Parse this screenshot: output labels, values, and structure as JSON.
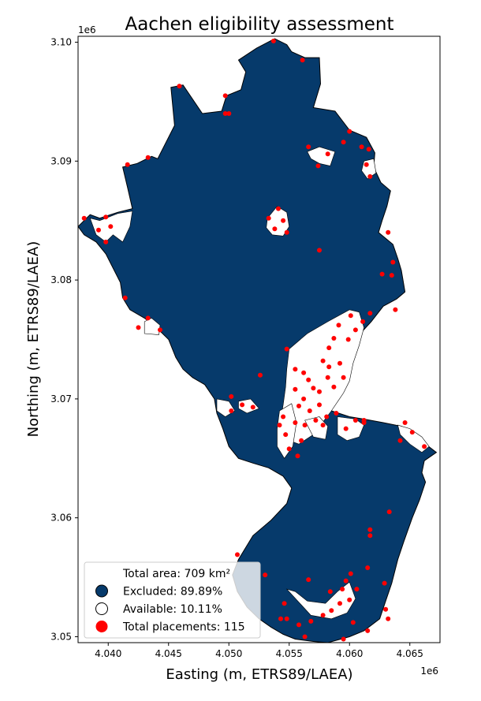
{
  "chart_data": {
    "type": "scatter",
    "title": "Aachen eligibility assessment",
    "xlabel": "Easting (m, ETRS89/LAEA)",
    "ylabel": "Northing (m, ETRS89/LAEA)",
    "x_offset_label": "1e6",
    "y_offset_label": "1e6",
    "xlim": [
      4.0375,
      4.0675
    ],
    "ylim": [
      3.0495,
      3.1005
    ],
    "x_ticks": [
      {
        "value": 4.04,
        "label": "4.040"
      },
      {
        "value": 4.045,
        "label": "4.045"
      },
      {
        "value": 4.05,
        "label": "4.050"
      },
      {
        "value": 4.055,
        "label": "4.055"
      },
      {
        "value": 4.06,
        "label": "4.060"
      },
      {
        "value": 4.065,
        "label": "4.065"
      }
    ],
    "y_ticks": [
      {
        "value": 3.05,
        "label": "3.05"
      },
      {
        "value": 3.06,
        "label": "3.06"
      },
      {
        "value": 3.07,
        "label": "3.07"
      },
      {
        "value": 3.08,
        "label": "3.08"
      },
      {
        "value": 3.09,
        "label": "3.09"
      },
      {
        "value": 3.1,
        "label": "3.10"
      }
    ],
    "colors": {
      "excluded": "#063a6b",
      "available": "#ffffff",
      "placement": "#ff0000",
      "boundary": "#000000"
    },
    "region_boundary": [
      [
        4.0375,
        3.0845
      ],
      [
        4.0385,
        3.0855
      ],
      [
        4.0393,
        3.0852
      ],
      [
        4.0408,
        3.0857
      ],
      [
        4.042,
        3.086
      ],
      [
        4.0416,
        3.0878
      ],
      [
        4.0412,
        3.0895
      ],
      [
        4.0424,
        3.0898
      ],
      [
        4.0436,
        3.0904
      ],
      [
        4.0441,
        3.0902
      ],
      [
        4.0455,
        3.093
      ],
      [
        4.0452,
        3.0962
      ],
      [
        4.0462,
        3.0964
      ],
      [
        4.0478,
        3.094
      ],
      [
        4.0494,
        3.0942
      ],
      [
        4.0498,
        3.0955
      ],
      [
        4.051,
        3.096
      ],
      [
        4.0514,
        3.0975
      ],
      [
        4.0508,
        3.0985
      ],
      [
        4.0523,
        3.0995
      ],
      [
        4.0538,
        3.1003
      ],
      [
        4.0548,
        3.0998
      ],
      [
        4.0552,
        3.0992
      ],
      [
        4.0563,
        3.0987
      ],
      [
        4.0575,
        3.0987
      ],
      [
        4.0576,
        3.0965
      ],
      [
        4.057,
        3.0945
      ],
      [
        4.0588,
        3.0942
      ],
      [
        4.06,
        3.0926
      ],
      [
        4.0614,
        3.092
      ],
      [
        4.0621,
        3.0907
      ],
      [
        4.062,
        3.0895
      ],
      [
        4.0626,
        3.0882
      ],
      [
        4.0634,
        3.0875
      ],
      [
        4.0631,
        3.0862
      ],
      [
        4.0627,
        3.085
      ],
      [
        4.0624,
        3.084
      ],
      [
        4.0636,
        3.083
      ],
      [
        4.064,
        3.0818
      ],
      [
        4.0643,
        3.0808
      ],
      [
        4.0646,
        3.079
      ],
      [
        4.0639,
        3.0784
      ],
      [
        4.0628,
        3.0778
      ],
      [
        4.0618,
        3.0765
      ],
      [
        4.0608,
        3.0754
      ],
      [
        4.06,
        3.0738
      ],
      [
        4.0594,
        3.0722
      ],
      [
        4.059,
        3.0706
      ],
      [
        4.0583,
        3.0698
      ],
      [
        4.0585,
        3.069
      ],
      [
        4.06,
        3.0685
      ],
      [
        4.0612,
        3.0683
      ],
      [
        4.0628,
        3.068
      ],
      [
        4.0643,
        3.0677
      ],
      [
        4.0652,
        3.0672
      ],
      [
        4.0663,
        3.0662
      ],
      [
        4.0672,
        3.0655
      ],
      [
        4.0662,
        3.0648
      ],
      [
        4.066,
        3.0638
      ],
      [
        4.0663,
        3.063
      ],
      [
        4.0658,
        3.0615
      ],
      [
        4.0652,
        3.06
      ],
      [
        4.0645,
        3.058
      ],
      [
        4.064,
        3.0565
      ],
      [
        4.0635,
        3.0545
      ],
      [
        4.063,
        3.053
      ],
      [
        4.0625,
        3.0515
      ],
      [
        4.0612,
        3.0505
      ],
      [
        4.06,
        3.05
      ],
      [
        4.0582,
        3.0495
      ],
      [
        4.057,
        3.0496
      ],
      [
        4.0555,
        3.0498
      ],
      [
        4.0545,
        3.0502
      ],
      [
        4.0535,
        3.0508
      ],
      [
        4.0525,
        3.0515
      ],
      [
        4.0515,
        3.0525
      ],
      [
        4.0507,
        3.0538
      ],
      [
        4.0503,
        3.0552
      ],
      [
        4.0508,
        3.0565
      ],
      [
        4.052,
        3.0585
      ],
      [
        4.0535,
        3.0598
      ],
      [
        4.0548,
        3.0612
      ],
      [
        4.0552,
        3.0625
      ],
      [
        4.0545,
        3.0635
      ],
      [
        4.0533,
        3.0642
      ],
      [
        4.052,
        3.0646
      ],
      [
        4.0508,
        3.065
      ],
      [
        4.05,
        3.066
      ],
      [
        4.0495,
        3.0675
      ],
      [
        4.049,
        3.0688
      ],
      [
        4.0488,
        3.07
      ],
      [
        4.048,
        3.0712
      ],
      [
        4.047,
        3.0718
      ],
      [
        4.0462,
        3.0725
      ],
      [
        4.0456,
        3.0735
      ],
      [
        4.045,
        3.075
      ],
      [
        4.044,
        3.076
      ],
      [
        4.043,
        3.0768
      ],
      [
        4.0418,
        3.0775
      ],
      [
        4.0412,
        3.0785
      ],
      [
        4.041,
        3.0798
      ],
      [
        4.0404,
        3.081
      ],
      [
        4.0398,
        3.0822
      ],
      [
        4.039,
        3.0832
      ],
      [
        4.038,
        3.0838
      ],
      [
        4.0375,
        3.0845
      ]
    ],
    "available_patches": [
      [
        [
          4.055,
          3.0742
        ],
        [
          4.0565,
          3.0755
        ],
        [
          4.0582,
          3.0765
        ],
        [
          4.06,
          3.0775
        ],
        [
          4.0608,
          3.0773
        ],
        [
          4.0612,
          3.076
        ],
        [
          4.0608,
          3.0745
        ],
        [
          4.0603,
          3.073
        ],
        [
          4.06,
          3.0715
        ],
        [
          4.0595,
          3.0705
        ],
        [
          4.0585,
          3.069
        ],
        [
          4.057,
          3.067
        ],
        [
          4.0558,
          3.0662
        ],
        [
          4.055,
          3.0665
        ],
        [
          4.0545,
          3.0672
        ],
        [
          4.0543,
          3.0682
        ],
        [
          4.0545,
          3.0695
        ],
        [
          4.0547,
          3.071
        ],
        [
          4.0548,
          3.0725
        ]
      ],
      [
        [
          4.0532,
          3.0852
        ],
        [
          4.054,
          3.0862
        ],
        [
          4.0548,
          3.0857
        ],
        [
          4.055,
          3.0845
        ],
        [
          4.0545,
          3.0837
        ],
        [
          4.0536,
          3.0838
        ],
        [
          4.0531,
          3.0844
        ]
      ],
      [
        [
          4.059,
          3.0685
        ],
        [
          4.0605,
          3.0683
        ],
        [
          4.0612,
          3.0678
        ],
        [
          4.0608,
          3.0668
        ],
        [
          4.0598,
          3.0665
        ],
        [
          4.059,
          3.067
        ]
      ],
      [
        [
          4.0385,
          3.0852
        ],
        [
          4.0393,
          3.085
        ],
        [
          4.0408,
          3.0856
        ],
        [
          4.042,
          3.0858
        ],
        [
          4.0418,
          3.0845
        ],
        [
          4.0412,
          3.0832
        ],
        [
          4.0404,
          3.0838
        ],
        [
          4.0398,
          3.0832
        ],
        [
          4.039,
          3.0838
        ]
      ],
      [
        [
          4.0436,
          3.0768
        ],
        [
          4.0443,
          3.0762
        ],
        [
          4.0442,
          3.0754
        ],
        [
          4.043,
          3.0755
        ],
        [
          4.043,
          3.0765
        ]
      ],
      [
        [
          4.0565,
          3.0908
        ],
        [
          4.0575,
          3.0912
        ],
        [
          4.0588,
          3.0908
        ],
        [
          4.0584,
          3.0896
        ],
        [
          4.0575,
          3.0898
        ],
        [
          4.0568,
          3.0902
        ]
      ],
      [
        [
          4.0612,
          3.09
        ],
        [
          4.062,
          3.0902
        ],
        [
          4.0622,
          3.089
        ],
        [
          4.0615,
          3.0885
        ],
        [
          4.061,
          3.0892
        ]
      ],
      [
        [
          4.0548,
          3.054
        ],
        [
          4.0568,
          3.0518
        ],
        [
          4.0585,
          3.0515
        ],
        [
          4.0598,
          3.052
        ],
        [
          4.0605,
          3.0532
        ],
        [
          4.06,
          3.0546
        ],
        [
          4.059,
          3.0538
        ],
        [
          4.058,
          3.0528
        ],
        [
          4.0565,
          3.053
        ],
        [
          4.0555,
          3.0538
        ]
      ],
      [
        [
          4.064,
          3.0678
        ],
        [
          4.065,
          3.0675
        ],
        [
          4.066,
          3.0668
        ],
        [
          4.0666,
          3.066
        ],
        [
          4.066,
          3.0655
        ],
        [
          4.065,
          3.0662
        ],
        [
          4.0642,
          3.067
        ]
      ],
      [
        [
          4.049,
          3.07
        ],
        [
          4.05,
          3.0698
        ],
        [
          4.0505,
          3.069
        ],
        [
          4.0497,
          3.0685
        ],
        [
          4.049,
          3.069
        ]
      ],
      [
        [
          4.0508,
          3.0698
        ],
        [
          4.0518,
          3.07
        ],
        [
          4.0525,
          3.0692
        ],
        [
          4.0515,
          3.0688
        ],
        [
          4.0508,
          3.0692
        ]
      ],
      [
        [
          4.0542,
          3.069
        ],
        [
          4.0552,
          3.0696
        ],
        [
          4.0556,
          3.068
        ],
        [
          4.0553,
          3.066
        ],
        [
          4.0546,
          3.065
        ],
        [
          4.054,
          3.066
        ],
        [
          4.054,
          3.0675
        ]
      ],
      [
        [
          4.0563,
          3.0682
        ],
        [
          4.0575,
          3.0685
        ],
        [
          4.0582,
          3.0677
        ],
        [
          4.058,
          3.0666
        ],
        [
          4.057,
          3.0668
        ]
      ]
    ],
    "placements": [
      [
        4.038,
        3.0852
      ],
      [
        4.0398,
        3.0853
      ],
      [
        4.0392,
        3.0842
      ],
      [
        4.0402,
        3.0845
      ],
      [
        4.0398,
        3.0832
      ],
      [
        4.0414,
        3.0785
      ],
      [
        4.0433,
        3.0768
      ],
      [
        4.0443,
        3.0758
      ],
      [
        4.0425,
        3.076
      ],
      [
        4.0416,
        3.0897
      ],
      [
        4.0433,
        3.0903
      ],
      [
        4.0459,
        3.0963
      ],
      [
        4.0497,
        3.0955
      ],
      [
        4.0497,
        3.094
      ],
      [
        4.0537,
        3.1001
      ],
      [
        4.0561,
        3.0985
      ],
      [
        4.0566,
        3.0912
      ],
      [
        4.0574,
        3.0896
      ],
      [
        4.0582,
        3.0906
      ],
      [
        4.0595,
        3.0916
      ],
      [
        4.06,
        3.0925
      ],
      [
        4.061,
        3.0912
      ],
      [
        4.0616,
        3.091
      ],
      [
        4.0614,
        3.0897
      ],
      [
        4.0617,
        3.0887
      ],
      [
        4.0632,
        3.084
      ],
      [
        4.0636,
        3.0815
      ],
      [
        4.0635,
        3.0804
      ],
      [
        4.0627,
        3.0805
      ],
      [
        4.0638,
        3.0775
      ],
      [
        4.0617,
        3.0772
      ],
      [
        4.0611,
        3.0765
      ],
      [
        4.0601,
        3.077
      ],
      [
        4.0605,
        3.0758
      ],
      [
        4.0599,
        3.075
      ],
      [
        4.0591,
        3.0762
      ],
      [
        4.0587,
        3.0751
      ],
      [
        4.0583,
        3.0743
      ],
      [
        4.0578,
        3.0732
      ],
      [
        4.0583,
        3.0727
      ],
      [
        4.0592,
        3.073
      ],
      [
        4.0595,
        3.0718
      ],
      [
        4.0587,
        3.071
      ],
      [
        4.0582,
        3.0718
      ],
      [
        4.0575,
        3.0706
      ],
      [
        4.0566,
        3.0716
      ],
      [
        4.0562,
        3.0722
      ],
      [
        4.0555,
        3.0725
      ],
      [
        4.0548,
        3.0742
      ],
      [
        4.0555,
        3.0708
      ],
      [
        4.0562,
        3.07
      ],
      [
        4.057,
        3.0709
      ],
      [
        4.0575,
        3.0695
      ],
      [
        4.0567,
        3.069
      ],
      [
        4.0558,
        3.0694
      ],
      [
        4.0555,
        3.068
      ],
      [
        4.0563,
        3.0678
      ],
      [
        4.0572,
        3.0682
      ],
      [
        4.0581,
        3.0685
      ],
      [
        4.0589,
        3.0688
      ],
      [
        4.0605,
        3.0682
      ],
      [
        4.0612,
        3.068
      ],
      [
        4.0597,
        3.0675
      ],
      [
        4.0578,
        3.0678
      ],
      [
        4.0545,
        3.0685
      ],
      [
        4.0547,
        3.067
      ],
      [
        4.055,
        3.0658
      ],
      [
        4.0557,
        3.0652
      ],
      [
        4.056,
        3.0665
      ],
      [
        4.0542,
        3.0678
      ],
      [
        4.0502,
        3.069
      ],
      [
        4.0502,
        3.0702
      ],
      [
        4.0511,
        3.0695
      ],
      [
        4.052,
        3.0693
      ],
      [
        4.0526,
        3.072
      ],
      [
        4.0533,
        3.0852
      ],
      [
        4.0541,
        3.086
      ],
      [
        4.0545,
        3.085
      ],
      [
        4.0538,
        3.0843
      ],
      [
        4.0548,
        3.084
      ],
      [
        4.0575,
        3.0825
      ],
      [
        4.05,
        3.094
      ],
      [
        4.0612,
        3.0682
      ],
      [
        4.0646,
        3.068
      ],
      [
        4.0652,
        3.0672
      ],
      [
        4.0642,
        3.0665
      ],
      [
        4.0662,
        3.066
      ],
      [
        4.0633,
        3.0605
      ],
      [
        4.0617,
        3.0585
      ],
      [
        4.0617,
        3.059
      ],
      [
        4.0615,
        3.0558
      ],
      [
        4.0629,
        3.0545
      ],
      [
        4.063,
        3.0523
      ],
      [
        4.0632,
        3.0515
      ],
      [
        4.0615,
        3.0505
      ],
      [
        4.0603,
        3.0512
      ],
      [
        4.0595,
        3.0498
      ],
      [
        4.0585,
        3.0522
      ],
      [
        4.0578,
        3.0518
      ],
      [
        4.0568,
        3.0513
      ],
      [
        4.0563,
        3.05
      ],
      [
        4.0558,
        3.051
      ],
      [
        4.0548,
        3.0515
      ],
      [
        4.0546,
        3.0528
      ],
      [
        4.0566,
        3.0548
      ],
      [
        4.0584,
        3.0538
      ],
      [
        4.0594,
        3.054
      ],
      [
        4.0597,
        3.0547
      ],
      [
        4.0601,
        3.0553
      ],
      [
        4.06,
        3.0531
      ],
      [
        4.0606,
        3.054
      ],
      [
        4.0592,
        3.0528
      ],
      [
        4.053,
        3.0552
      ],
      [
        4.0507,
        3.0569
      ],
      [
        4.0543,
        3.0515
      ]
    ]
  },
  "legend": {
    "items": [
      {
        "marker": "none",
        "label": "Total area: 709 km²"
      },
      {
        "marker": "excluded",
        "label": "Excluded: 89.89%"
      },
      {
        "marker": "available",
        "label": "Available: 10.11%"
      },
      {
        "marker": "placement",
        "label": "Total placements: 115"
      }
    ]
  }
}
